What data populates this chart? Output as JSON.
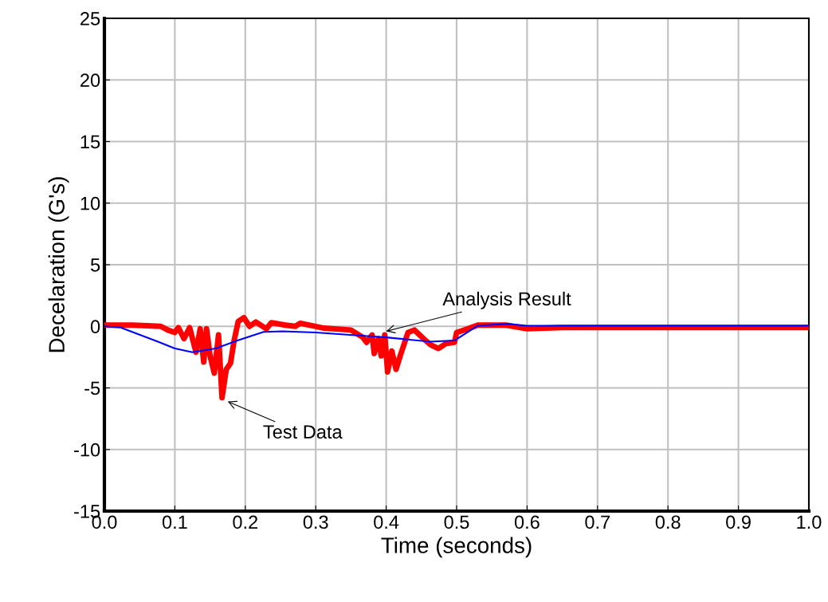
{
  "chart_data": {
    "type": "line",
    "xlabel": "Time (seconds)",
    "ylabel": "Decelaration (G's)",
    "xlim": [
      0,
      1
    ],
    "ylim": [
      -15,
      25
    ],
    "xticks": [
      {
        "value": 0,
        "label": "0.0"
      },
      {
        "value": 0.1,
        "label": "0.1"
      },
      {
        "value": 0.2,
        "label": "0.2"
      },
      {
        "value": 0.3,
        "label": "0.3"
      },
      {
        "value": 0.4,
        "label": "0.4"
      },
      {
        "value": 0.5,
        "label": "0.5"
      },
      {
        "value": 0.6,
        "label": "0.6"
      },
      {
        "value": 0.7,
        "label": "0.7"
      },
      {
        "value": 0.8,
        "label": "0.8"
      },
      {
        "value": 0.9,
        "label": "0.9"
      },
      {
        "value": 1,
        "label": "1.0"
      }
    ],
    "yticks": [
      -15,
      -10,
      -5,
      0,
      5,
      10,
      15,
      20,
      25
    ],
    "grid": true,
    "legend": false,
    "marker": "none",
    "line_style": "solid",
    "series": [
      {
        "color": "#ff0000",
        "x": [
          0,
          0.04,
          0.08,
          0.09,
          0.1,
          0.105,
          0.113,
          0.121,
          0.13,
          0.136,
          0.141,
          0.145,
          0.15,
          0.156,
          0.162,
          0.167,
          0.173,
          0.179,
          0.184,
          0.19,
          0.198,
          0.206,
          0.215,
          0.23,
          0.237,
          0.257,
          0.271,
          0.278,
          0.312,
          0.35,
          0.367,
          0.372,
          0.38,
          0.383,
          0.389,
          0.393,
          0.398,
          0.402,
          0.408,
          0.414,
          0.421,
          0.431,
          0.44,
          0.455,
          0.463,
          0.474,
          0.485,
          0.497,
          0.5,
          0.516,
          0.53,
          0.57,
          0.6,
          0.65,
          0.7,
          0.8,
          0.9,
          1.0
        ],
        "values": [
          0.1,
          0.1,
          0,
          -0.3,
          -0.5,
          -0.1,
          -1.0,
          -0.1,
          -2.1,
          -0.2,
          -2.9,
          -0.2,
          -2.4,
          -3.8,
          -0.7,
          -5.8,
          -3.5,
          -3.0,
          -1.2,
          0.4,
          0.7,
          0,
          0.35,
          -0.2,
          0.3,
          0.1,
          0,
          0.25,
          -0.15,
          -0.3,
          -0.9,
          -1.3,
          -0.7,
          -2.2,
          -1.0,
          -2.4,
          -0.7,
          -3.7,
          -2.0,
          -3.5,
          -2.2,
          -0.5,
          -0.3,
          -1.1,
          -1.5,
          -1.8,
          -1.4,
          -1.3,
          -0.5,
          -0.2,
          0.1,
          0.1,
          -0.2,
          -0.1,
          -0.1,
          -0.1,
          -0.1,
          -0.1
        ]
      },
      {
        "color": "#0000ff",
        "x": [
          0,
          0.023,
          0.076,
          0.1,
          0.125,
          0.158,
          0.189,
          0.226,
          0.253,
          0.3,
          0.369,
          0.4,
          0.463,
          0.497,
          0.53,
          0.572,
          0.6,
          0.7,
          0.8,
          0.9,
          1.0
        ],
        "values": [
          0,
          -0.1,
          -1.25,
          -1.8,
          -2.1,
          -1.8,
          -1.15,
          -0.45,
          -0.4,
          -0.5,
          -0.78,
          -0.9,
          -1.25,
          -1.15,
          0.05,
          0.2,
          0.05,
          0.05,
          0.05,
          0.05,
          0.05
        ]
      }
    ],
    "annotations": [
      {
        "text": "Analysis Result",
        "x": 0.4,
        "y": -0.4
      },
      {
        "text": "Test Data",
        "x": 0.175,
        "y": -6.1
      }
    ]
  }
}
